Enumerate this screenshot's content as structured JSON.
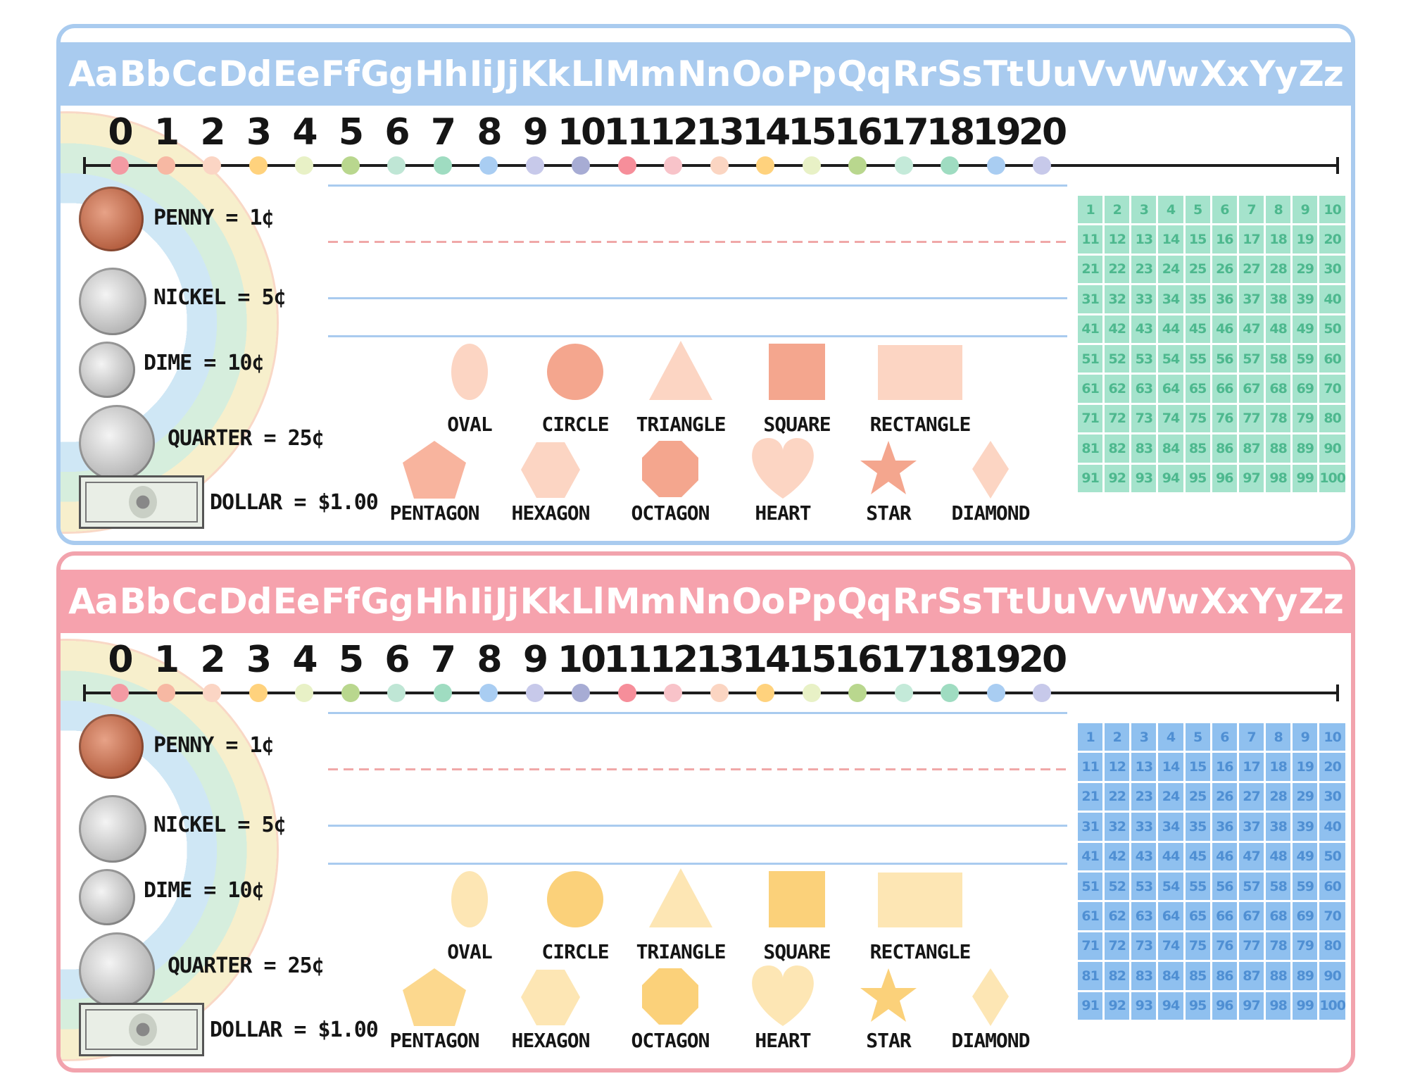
{
  "alphabet": [
    "Aa",
    "Bb",
    "Cc",
    "Dd",
    "Ee",
    "Ff",
    "Gg",
    "Hh",
    "Ii",
    "Jj",
    "Kk",
    "Ll",
    "Mm",
    "Nn",
    "Oo",
    "Pp",
    "Qq",
    "Rr",
    "Ss",
    "Tt",
    "Uu",
    "Vv",
    "Ww",
    "Xx",
    "Yy",
    "Zz"
  ],
  "numbers": [
    "0",
    "1",
    "2",
    "3",
    "4",
    "5",
    "6",
    "7",
    "8",
    "9",
    "10",
    "11",
    "12",
    "13",
    "14",
    "15",
    "16",
    "17",
    "18",
    "19",
    "20"
  ],
  "dot_colors": [
    "#f39aa3",
    "#f7b8a3",
    "#fbd5c4",
    "#ffd27d",
    "#e8f1c6",
    "#b9d78e",
    "#bfe6d5",
    "#9fdcc1",
    "#a9cdf2",
    "#c7c9ea",
    "#a7acd4",
    "#f68e9a",
    "#f8c3c9",
    "#fbd5c2",
    "#ffd27d",
    "#e8f1c6",
    "#b9d78e",
    "#c4ead9",
    "#9fdcc1",
    "#a9cdf2",
    "#c7c9ea"
  ],
  "coins": {
    "penny": "PENNY = 1¢",
    "nickel": "NICKEL = 5¢",
    "dime": "DIME = 10¢",
    "quarter": "QUARTER = 25¢",
    "dollar": "DOLLAR = $1.00"
  },
  "shapes": {
    "oval": "OVAL",
    "circle": "CIRCLE",
    "triangle": "TRIANGLE",
    "square": "SQUARE",
    "rectangle": "RECTANGLE",
    "pentagon": "PENTAGON",
    "hexagon": "HEXAGON",
    "octagon": "OCTAGON",
    "heart": "HEART",
    "star": "STAR",
    "diamond": "DIAMOND"
  },
  "hundreds": [
    "1",
    "2",
    "3",
    "4",
    "5",
    "6",
    "7",
    "8",
    "9",
    "10",
    "11",
    "12",
    "13",
    "14",
    "15",
    "16",
    "17",
    "18",
    "19",
    "20",
    "21",
    "22",
    "23",
    "24",
    "25",
    "26",
    "27",
    "28",
    "29",
    "30",
    "31",
    "32",
    "33",
    "34",
    "35",
    "36",
    "37",
    "38",
    "39",
    "40",
    "41",
    "42",
    "43",
    "44",
    "45",
    "46",
    "47",
    "48",
    "49",
    "50",
    "51",
    "52",
    "53",
    "54",
    "55",
    "56",
    "57",
    "58",
    "59",
    "60",
    "61",
    "62",
    "63",
    "64",
    "65",
    "66",
    "67",
    "68",
    "69",
    "70",
    "71",
    "72",
    "73",
    "74",
    "75",
    "76",
    "77",
    "78",
    "79",
    "80",
    "81",
    "82",
    "83",
    "84",
    "85",
    "86",
    "87",
    "88",
    "89",
    "90",
    "91",
    "92",
    "93",
    "94",
    "95",
    "96",
    "97",
    "98",
    "99",
    "100"
  ],
  "cards": [
    {
      "theme": {
        "border": "#a9cbef",
        "alpha_bg": "#a9cbef",
        "grid_bg": "#a5e3cc",
        "grid_text": "#4db88e",
        "shapes_light": "#fcd5c3",
        "shapes_mid": "#f8b49e",
        "shapes_dark": "#f4a68e",
        "write_line": "#a9cbef",
        "dash_line": "#f0a8a8"
      }
    },
    {
      "theme": {
        "border": "#f2a3ad",
        "alpha_bg": "#f6a2ad",
        "grid_bg": "#8fc0ef",
        "grid_text": "#4f8fd3",
        "shapes_light": "#fde6b4",
        "shapes_mid": "#fcd88e",
        "shapes_dark": "#fbd17a",
        "write_line": "#a9cbef",
        "dash_line": "#f0a8a8"
      }
    }
  ]
}
